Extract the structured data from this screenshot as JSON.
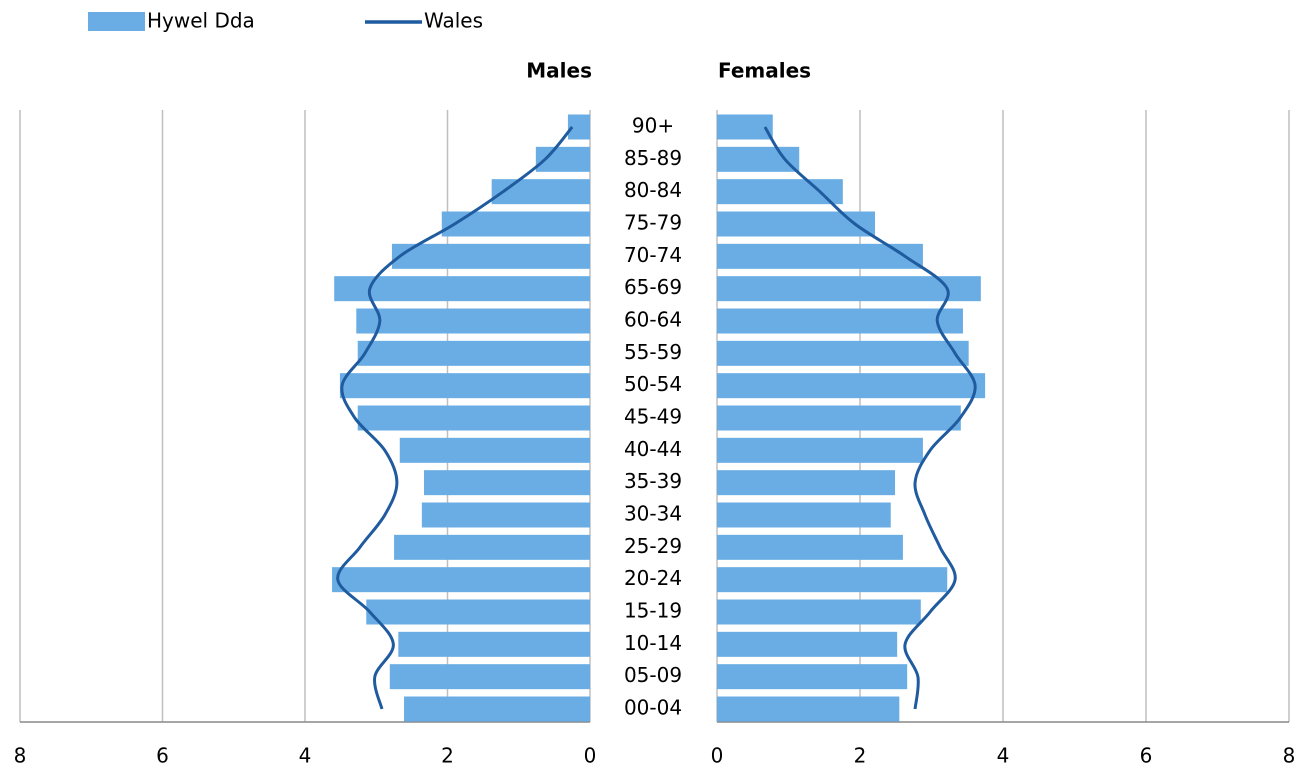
{
  "chart_data": {
    "type": "pyramid",
    "categories": [
      "00-04",
      "05-09",
      "10-14",
      "15-19",
      "20-24",
      "25-29",
      "30-34",
      "35-39",
      "40-44",
      "45-49",
      "50-54",
      "55-59",
      "60-64",
      "65-69",
      "70-74",
      "75-79",
      "80-84",
      "85-89",
      "90+"
    ],
    "panels": [
      {
        "title": "Males",
        "side": "left"
      },
      {
        "title": "Females",
        "side": "right"
      }
    ],
    "series": [
      {
        "name": "Hywel Dda",
        "color": "#6aade4",
        "mark": "bar",
        "males": [
          2.61,
          2.81,
          2.69,
          3.14,
          3.62,
          2.75,
          2.36,
          2.33,
          2.67,
          3.26,
          3.51,
          3.26,
          3.28,
          3.59,
          2.78,
          2.08,
          1.38,
          0.76,
          0.31
        ],
        "females": [
          2.55,
          2.66,
          2.52,
          2.85,
          3.22,
          2.6,
          2.43,
          2.49,
          2.88,
          3.41,
          3.75,
          3.52,
          3.44,
          3.69,
          2.88,
          2.21,
          1.76,
          1.15,
          0.78
        ]
      },
      {
        "name": "Wales",
        "color": "#1f5b9e",
        "mark": "line",
        "males": [
          2.92,
          3.02,
          2.76,
          3.09,
          3.54,
          3.23,
          2.88,
          2.71,
          2.88,
          3.3,
          3.48,
          3.16,
          2.95,
          3.09,
          2.67,
          1.9,
          1.22,
          0.63,
          0.25
        ],
        "females": [
          2.77,
          2.81,
          2.63,
          2.98,
          3.33,
          3.12,
          2.91,
          2.77,
          2.98,
          3.4,
          3.61,
          3.33,
          3.08,
          3.22,
          2.63,
          1.93,
          1.44,
          0.95,
          0.67
        ]
      }
    ],
    "xlim": [
      0,
      8
    ],
    "xticks": [
      0,
      2,
      4,
      6,
      8
    ],
    "grid": true,
    "legend": "top-left"
  }
}
